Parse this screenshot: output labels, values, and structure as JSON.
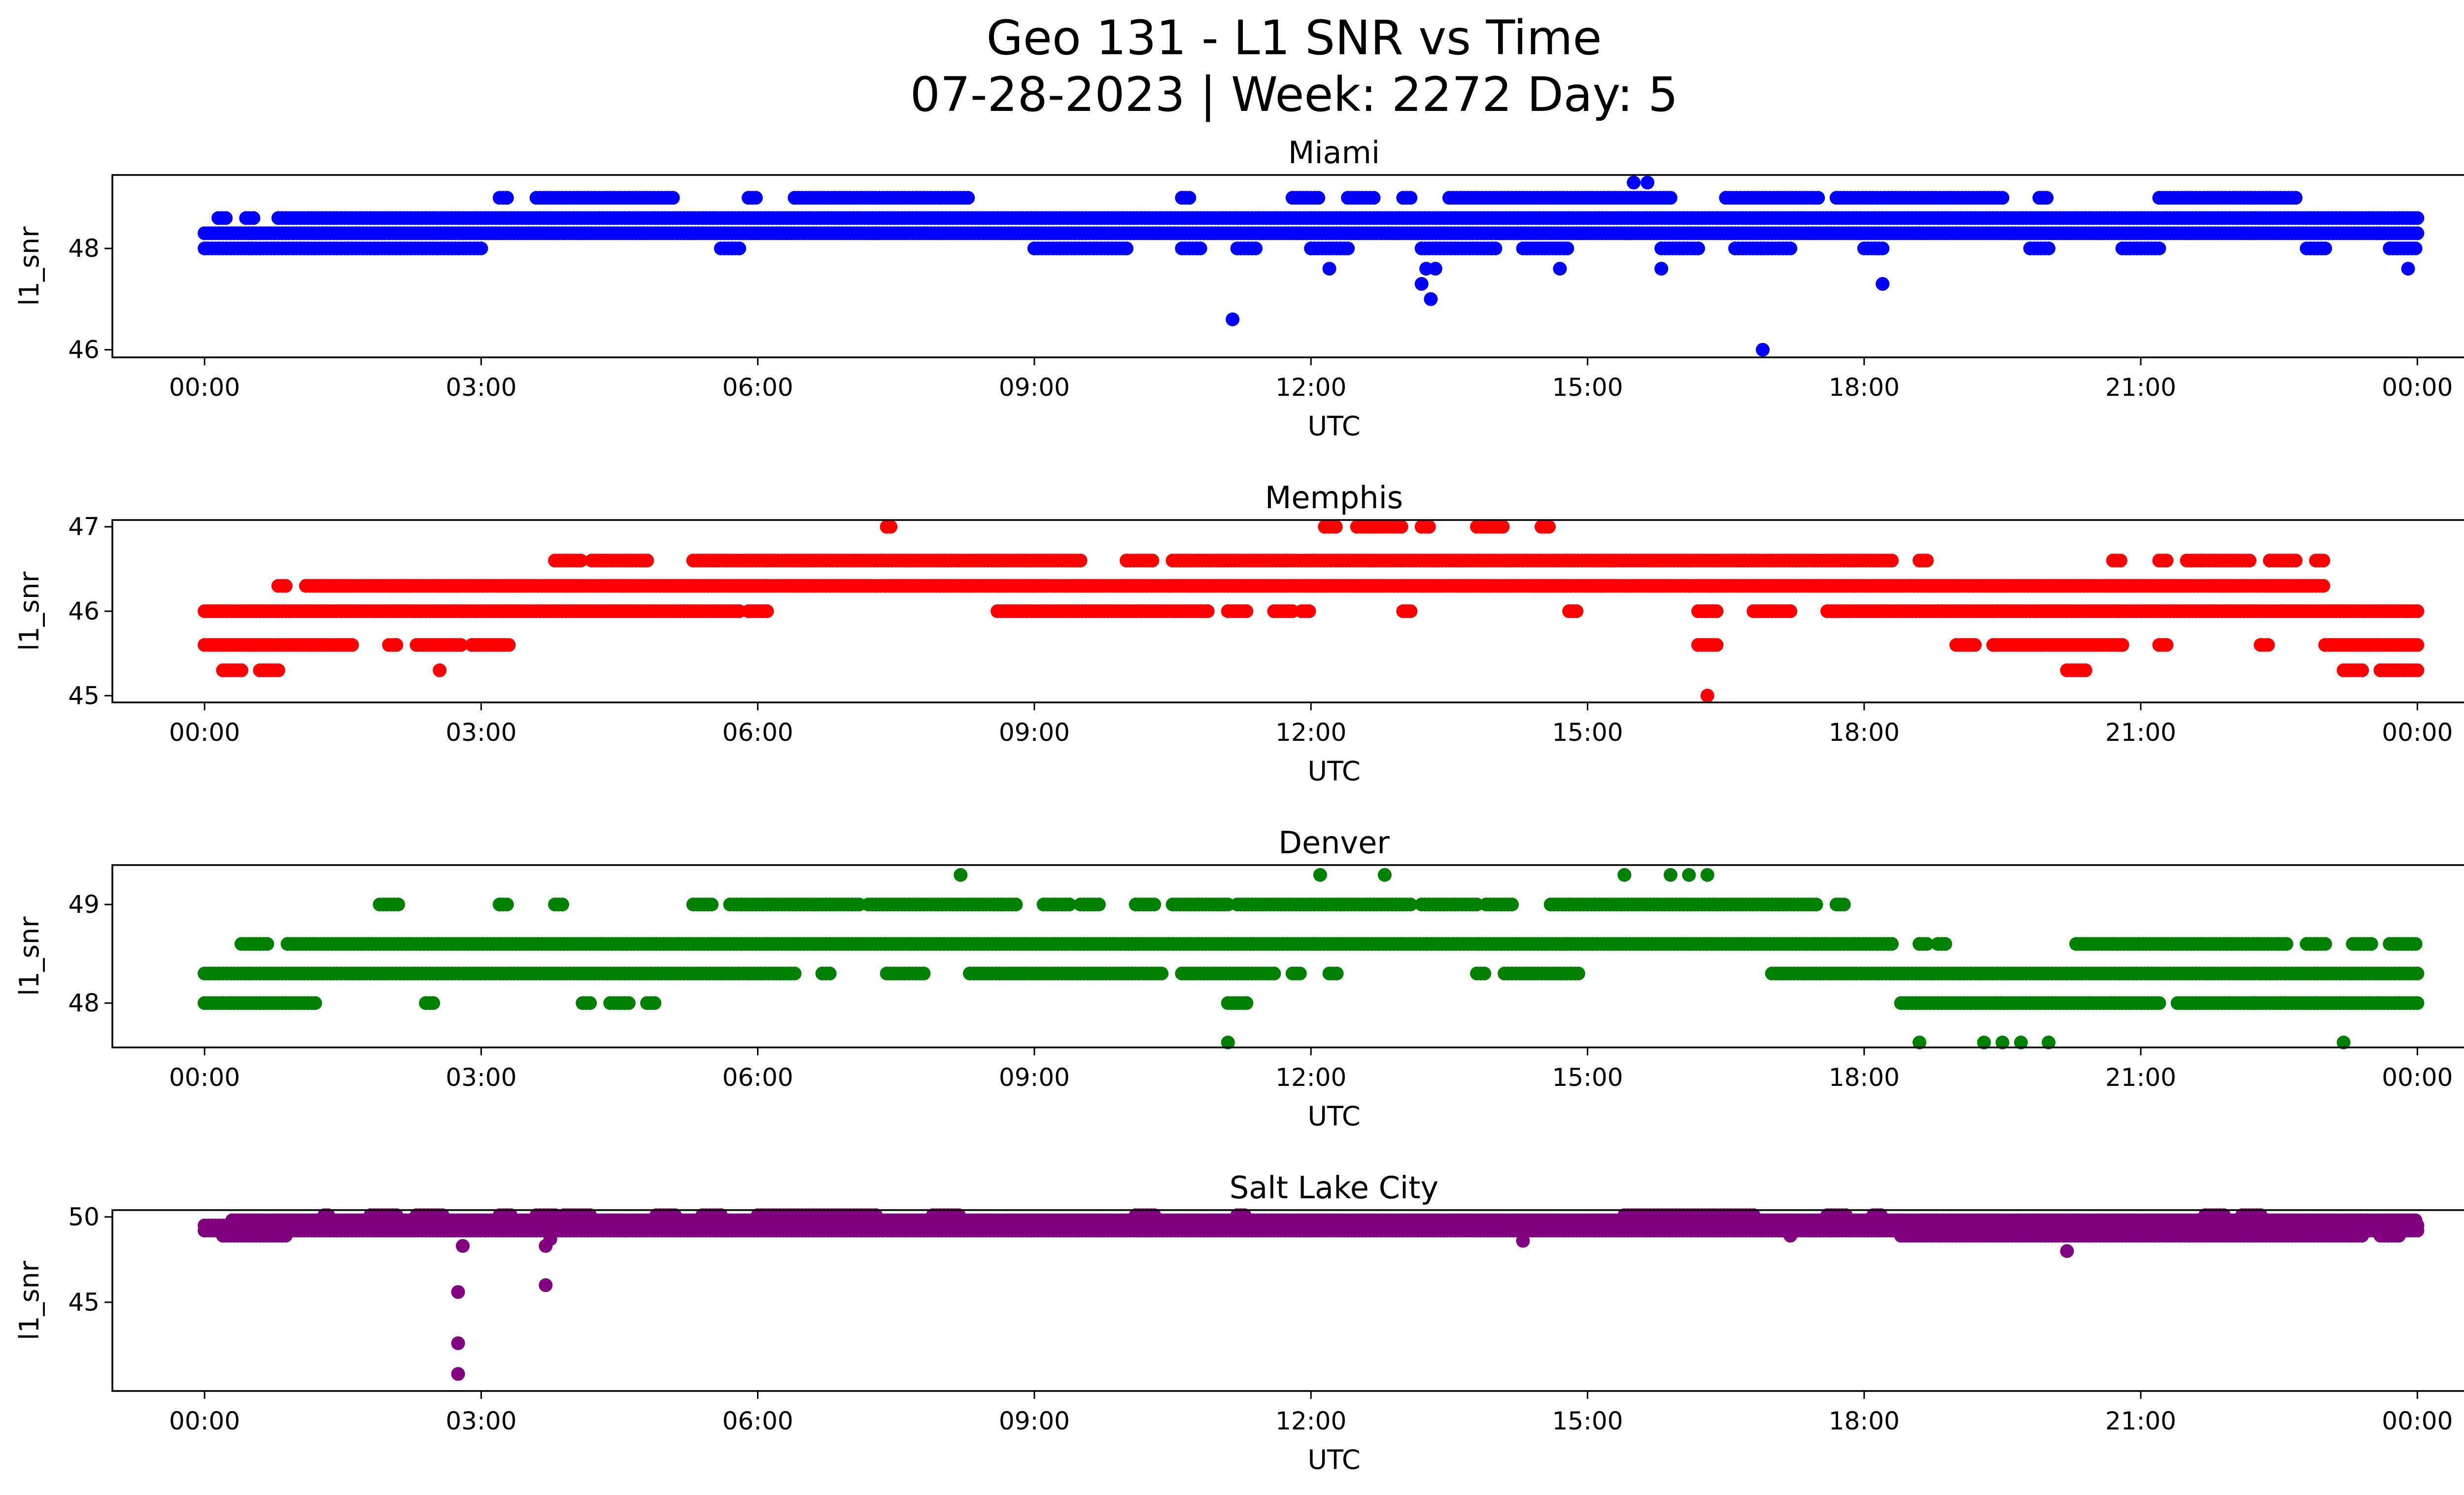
{
  "title": "Geo 131 - L1 SNR vs Time",
  "subtitle": "07-28-2023 | Week: 2272 Day: 5",
  "chart_data": [
    {
      "type": "scatter",
      "title": "Miami",
      "xlabel": "UTC",
      "ylabel": "l1_snr",
      "color": "#0000ff",
      "xlim": [
        -1,
        25.5
      ],
      "ylim": [
        45.85,
        49.45
      ],
      "x_ticks": [
        "00:00",
        "03:00",
        "06:00",
        "09:00",
        "12:00",
        "15:00",
        "18:00",
        "21:00",
        "00:00"
      ],
      "x_tick_values": [
        0,
        3,
        6,
        9,
        12,
        15,
        18,
        21,
        24
      ],
      "y_ticks": [
        46,
        48
      ],
      "levels": [
        {
          "y": 48.0,
          "x_ranges": [
            [
              0,
              3
            ],
            [
              5.6,
              5.8
            ],
            [
              9,
              10
            ],
            [
              10.6,
              10.8
            ],
            [
              11.2,
              11.4
            ],
            [
              12,
              12.4
            ],
            [
              13.2,
              14
            ],
            [
              14.3,
              14.8
            ],
            [
              15.8,
              16.2
            ],
            [
              16.6,
              17.2
            ],
            [
              18,
              18.2
            ],
            [
              19.8,
              20
            ],
            [
              20.8,
              21.2
            ],
            [
              22.8,
              23
            ],
            [
              23.7,
              24
            ]
          ]
        },
        {
          "y": 48.3,
          "x_ranges": [
            [
              0,
              24
            ]
          ]
        },
        {
          "y": 48.6,
          "x_ranges": [
            [
              0.15,
              0.25
            ],
            [
              0.45,
              0.55
            ],
            [
              0.8,
              24
            ]
          ]
        },
        {
          "y": 49.0,
          "x_ranges": [
            [
              3.2,
              3.3
            ],
            [
              3.6,
              5.1
            ],
            [
              5.9,
              6.0
            ],
            [
              6.4,
              8.3
            ],
            [
              10.6,
              10.7
            ],
            [
              11.8,
              12.1
            ],
            [
              12.4,
              12.7
            ],
            [
              13.0,
              13.1
            ],
            [
              13.5,
              15.9
            ],
            [
              16.5,
              17.5
            ],
            [
              17.7,
              19.5
            ],
            [
              19.9,
              20.0
            ],
            [
              21.2,
              22.7
            ]
          ]
        }
      ],
      "points": [
        [
          11.15,
          46.6
        ],
        [
          16.9,
          46.0
        ],
        [
          13.3,
          47.0
        ],
        [
          13.2,
          47.3
        ],
        [
          13.25,
          47.6
        ],
        [
          13.35,
          47.6
        ],
        [
          12.2,
          47.6
        ],
        [
          15.8,
          47.6
        ],
        [
          14.7,
          47.6
        ],
        [
          18.2,
          47.3
        ],
        [
          23.9,
          47.6
        ],
        [
          15.5,
          49.3
        ],
        [
          15.65,
          49.3
        ]
      ]
    },
    {
      "type": "scatter",
      "title": "Memphis",
      "xlabel": "UTC",
      "ylabel": "l1_snr",
      "color": "#ff0000",
      "xlim": [
        -1,
        25.5
      ],
      "ylim": [
        44.92,
        47.08
      ],
      "x_ticks": [
        "00:00",
        "03:00",
        "06:00",
        "09:00",
        "12:00",
        "15:00",
        "18:00",
        "21:00",
        "00:00"
      ],
      "x_tick_values": [
        0,
        3,
        6,
        9,
        12,
        15,
        18,
        21,
        24
      ],
      "y_ticks": [
        45,
        46,
        47
      ],
      "levels": [
        {
          "y": 45.3,
          "x_ranges": [
            [
              0.2,
              0.4
            ],
            [
              0.6,
              0.8
            ],
            [
              20.2,
              20.4
            ],
            [
              23.2,
              23.4
            ],
            [
              23.6,
              24
            ]
          ]
        },
        {
          "y": 45.6,
          "x_ranges": [
            [
              0,
              1.6
            ],
            [
              2.0,
              2.1
            ],
            [
              2.3,
              2.8
            ],
            [
              2.9,
              3.3
            ],
            [
              16.2,
              16.4
            ],
            [
              19.0,
              19.2
            ],
            [
              19.4,
              20.8
            ],
            [
              21.2,
              21.3
            ],
            [
              22.3,
              22.4
            ],
            [
              23.0,
              24
            ]
          ]
        },
        {
          "y": 46.0,
          "x_ranges": [
            [
              0,
              5.8
            ],
            [
              5.9,
              6.1
            ],
            [
              8.6,
              10.9
            ],
            [
              11.1,
              11.3
            ],
            [
              11.6,
              11.8
            ],
            [
              11.9,
              12.0
            ],
            [
              13.0,
              13.1
            ],
            [
              14.8,
              14.9
            ],
            [
              16.2,
              16.4
            ],
            [
              16.8,
              17.2
            ],
            [
              17.6,
              24
            ]
          ]
        },
        {
          "y": 46.3,
          "x_ranges": [
            [
              0.8,
              0.9
            ],
            [
              1.1,
              23.0
            ]
          ]
        },
        {
          "y": 46.6,
          "x_ranges": [
            [
              3.8,
              4.1
            ],
            [
              4.2,
              4.8
            ],
            [
              5.3,
              9.5
            ],
            [
              10.0,
              10.3
            ],
            [
              10.5,
              18.3
            ],
            [
              18.6,
              18.7
            ],
            [
              20.7,
              20.8
            ],
            [
              21.2,
              21.3
            ],
            [
              21.5,
              22.2
            ],
            [
              22.4,
              22.7
            ],
            [
              22.9,
              23.0
            ]
          ]
        },
        {
          "y": 47.0,
          "x_ranges": [
            [
              7.4,
              7.45
            ],
            [
              12.15,
              12.3
            ],
            [
              12.5,
              13.0
            ],
            [
              13.2,
              13.3
            ],
            [
              13.8,
              14.1
            ],
            [
              14.5,
              14.6
            ]
          ]
        }
      ],
      "points": [
        [
          16.3,
          45.0
        ],
        [
          2.55,
          45.3
        ],
        [
          7.4,
          47.0
        ]
      ]
    },
    {
      "type": "scatter",
      "title": "Denver",
      "xlabel": "UTC",
      "ylabel": "l1_snr",
      "color": "#008000",
      "xlim": [
        -1,
        25.5
      ],
      "ylim": [
        47.55,
        49.4
      ],
      "x_ticks": [
        "00:00",
        "03:00",
        "06:00",
        "09:00",
        "12:00",
        "15:00",
        "18:00",
        "21:00",
        "00:00"
      ],
      "x_tick_values": [
        0,
        3,
        6,
        9,
        12,
        15,
        18,
        21,
        24
      ],
      "y_ticks": [
        48,
        49
      ],
      "levels": [
        {
          "y": 48.0,
          "x_ranges": [
            [
              0,
              1.2
            ],
            [
              2.4,
              2.5
            ],
            [
              4.1,
              4.2
            ],
            [
              4.4,
              4.6
            ],
            [
              4.8,
              4.9
            ],
            [
              11.1,
              11.3
            ],
            [
              18.4,
              21.2
            ],
            [
              21.4,
              24
            ]
          ]
        },
        {
          "y": 48.3,
          "x_ranges": [
            [
              0,
              6.4
            ],
            [
              6.7,
              6.8
            ],
            [
              7.4,
              7.8
            ],
            [
              8.3,
              10.4
            ],
            [
              10.6,
              11.6
            ],
            [
              11.8,
              11.9
            ],
            [
              12.2,
              12.3
            ],
            [
              13.8,
              13.9
            ],
            [
              14.1,
              14.9
            ],
            [
              17.0,
              24
            ]
          ]
        },
        {
          "y": 48.6,
          "x_ranges": [
            [
              0.4,
              0.7
            ],
            [
              0.9,
              18.3
            ],
            [
              18.6,
              18.7
            ],
            [
              18.8,
              18.9
            ],
            [
              20.3,
              22.6
            ],
            [
              22.8,
              23.0
            ],
            [
              23.3,
              23.5
            ],
            [
              23.7,
              24
            ]
          ]
        },
        {
          "y": 49.0,
          "x_ranges": [
            [
              1.9,
              2.1
            ],
            [
              3.2,
              3.3
            ],
            [
              3.8,
              3.9
            ],
            [
              5.3,
              5.5
            ],
            [
              5.7,
              7.1
            ],
            [
              7.2,
              8.8
            ],
            [
              9.1,
              9.4
            ],
            [
              9.5,
              9.7
            ],
            [
              10.1,
              10.3
            ],
            [
              10.5,
              11.1
            ],
            [
              11.2,
              13.1
            ],
            [
              13.2,
              13.8
            ],
            [
              13.9,
              14.2
            ],
            [
              14.6,
              17.5
            ],
            [
              17.7,
              17.8
            ]
          ]
        }
      ],
      "points": [
        [
          11.1,
          47.6
        ],
        [
          18.6,
          47.6
        ],
        [
          19.3,
          47.6
        ],
        [
          19.5,
          47.6
        ],
        [
          19.7,
          47.6
        ],
        [
          20.0,
          47.6
        ],
        [
          23.2,
          47.6
        ],
        [
          8.2,
          49.3
        ],
        [
          12.1,
          49.3
        ],
        [
          12.8,
          49.3
        ],
        [
          15.4,
          49.3
        ],
        [
          15.9,
          49.3
        ],
        [
          16.1,
          49.3
        ],
        [
          16.3,
          49.3
        ]
      ]
    },
    {
      "type": "scatter",
      "title": "Salt Lake City",
      "xlabel": "UTC",
      "ylabel": "l1_snr",
      "color": "#800080",
      "xlim": [
        -1,
        25.5
      ],
      "ylim": [
        39.8,
        50.4
      ],
      "x_ticks": [
        "00:00",
        "03:00",
        "06:00",
        "09:00",
        "12:00",
        "15:00",
        "18:00",
        "21:00",
        "00:00"
      ],
      "x_tick_values": [
        0,
        3,
        6,
        9,
        12,
        15,
        18,
        21,
        24
      ],
      "y_ticks": [
        45,
        50
      ],
      "levels": [
        {
          "y": 48.9,
          "x_ranges": [
            [
              0.2,
              0.9
            ],
            [
              18.4,
              23.4
            ],
            [
              23.6,
              23.8
            ]
          ]
        },
        {
          "y": 49.2,
          "x_ranges": [
            [
              0,
              24
            ]
          ]
        },
        {
          "y": 49.5,
          "x_ranges": [
            [
              0,
              24
            ]
          ]
        },
        {
          "y": 49.8,
          "x_ranges": [
            [
              0.3,
              24
            ]
          ]
        },
        {
          "y": 50.1,
          "x_ranges": [
            [
              1.3,
              1.35
            ],
            [
              1.8,
              2.1
            ],
            [
              2.3,
              2.6
            ],
            [
              3.2,
              3.35
            ],
            [
              3.6,
              3.8
            ],
            [
              3.9,
              4.2
            ],
            [
              4.9,
              5.1
            ],
            [
              5.4,
              5.6
            ],
            [
              6.0,
              7.3
            ],
            [
              7.9,
              8.2
            ],
            [
              10.1,
              10.3
            ],
            [
              11.2,
              11.3
            ],
            [
              15.4,
              16.8
            ],
            [
              17.6,
              17.8
            ],
            [
              18.1,
              18.2
            ],
            [
              21.7,
              21.9
            ],
            [
              22.1,
              22.3
            ]
          ]
        }
      ],
      "points": [
        [
          2.75,
          40.8
        ],
        [
          2.75,
          42.6
        ],
        [
          2.75,
          45.6
        ],
        [
          2.8,
          48.3
        ],
        [
          3.7,
          46.0
        ],
        [
          3.7,
          48.3
        ],
        [
          3.75,
          48.7
        ],
        [
          14.3,
          48.6
        ],
        [
          20.2,
          48.0
        ],
        [
          17.2,
          48.9
        ]
      ]
    }
  ]
}
